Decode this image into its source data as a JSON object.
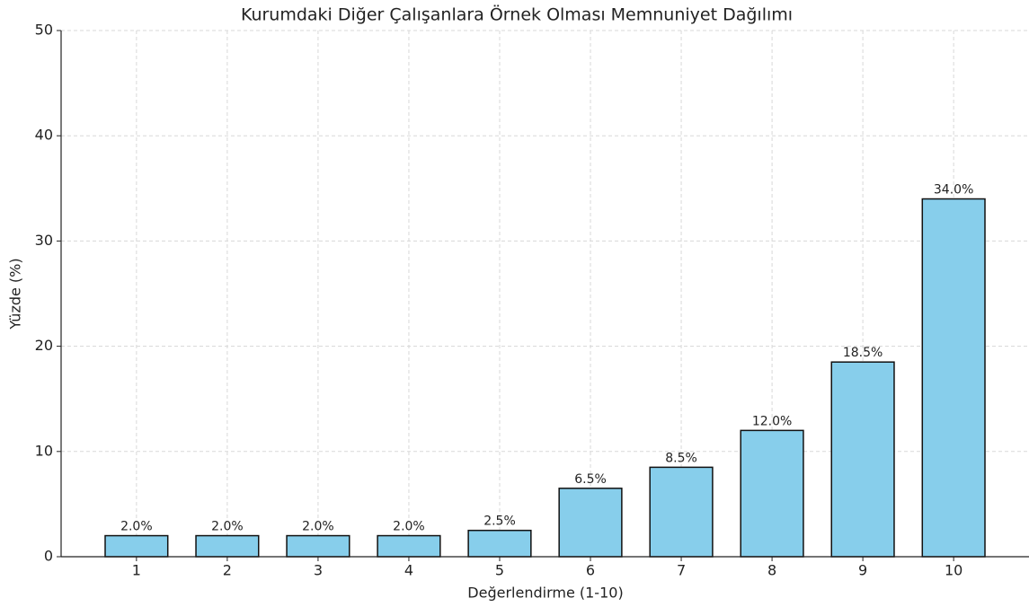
{
  "chart_data": {
    "type": "bar",
    "title": "Kurumdaki Diğer Çalışanlara Örnek Olması Memnuniyet Dağılımı",
    "x_label": "Değerlendirme (1-10)",
    "y_label": "Yüzde (%)",
    "categories": [
      "1",
      "2",
      "3",
      "4",
      "5",
      "6",
      "7",
      "8",
      "9",
      "10"
    ],
    "values": [
      2,
      2,
      2,
      2,
      2.5,
      6.5,
      8.5,
      12,
      18.5,
      34
    ],
    "value_labels": [
      "2.0%",
      "2.0%",
      "2.0%",
      "2.0%",
      "2.5%",
      "6.5%",
      "8.5%",
      "12.0%",
      "18.5%",
      "34.0%"
    ],
    "color": "#87ceeb",
    "ylim": [
      0,
      50
    ],
    "yticks": [
      0,
      10,
      20,
      30,
      40,
      50
    ],
    "grid": true
  }
}
